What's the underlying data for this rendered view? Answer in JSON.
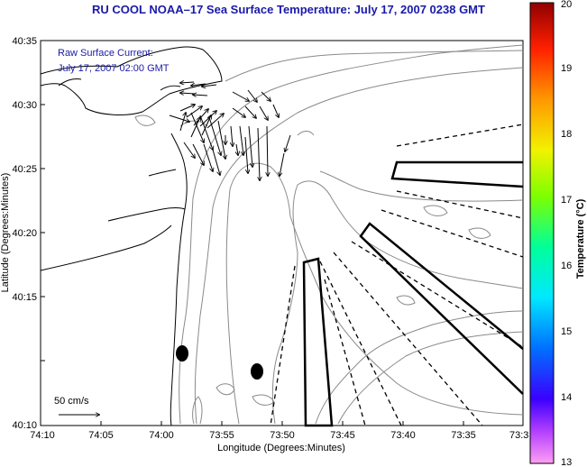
{
  "title": "RU COOL  NOAA–17  Sea Surface Temperature:  July 17, 2007 0238 GMT",
  "annotation": {
    "line1": "Raw Surface Current:",
    "line2": "July 17, 2007 02:00 GMT"
  },
  "scale_label": "50 cm/s",
  "axes": {
    "xlabel": "Longitude (Degrees:Minutes)",
    "ylabel": "Latitude (Degrees:Minutes)",
    "x_ticks": [
      "74:10",
      "74:05",
      "74:00",
      "73:55",
      "73:50",
      "73:45",
      "73:40",
      "73:35",
      "73:3"
    ],
    "y_ticks": [
      "40:35",
      "40:30",
      "40:25",
      "40:20",
      "40:15",
      "40:10"
    ]
  },
  "colorbar": {
    "label": "Temperature (°C)",
    "ticks": [
      "20",
      "19",
      "18",
      "17",
      "16",
      "15",
      "14",
      "13"
    ],
    "min": 13,
    "max": 20
  }
}
